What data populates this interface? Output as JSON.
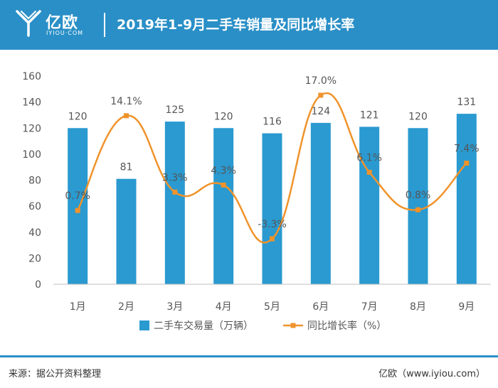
{
  "header": {
    "logo_text": "亿欧",
    "logo_sub": "IYIOU·COM",
    "title": "2019年1-9月二手车销量及同比增长率"
  },
  "chart_data": {
    "type": "bar",
    "title": "2019年1-9月二手车销量及同比增长率",
    "categories": [
      "1月",
      "2月",
      "3月",
      "4月",
      "5月",
      "6月",
      "7月",
      "8月",
      "9月"
    ],
    "series": [
      {
        "name": "二手车交易量（万辆）",
        "type": "bar",
        "values": [
          120,
          81,
          125,
          120,
          116,
          124,
          121,
          120,
          131
        ],
        "labels": [
          "120",
          "81",
          "125",
          "120",
          "116",
          "124",
          "121",
          "120",
          "131"
        ],
        "color": "#2a9ad0"
      },
      {
        "name": "同比增长率（%）",
        "type": "line",
        "values": [
          0.7,
          14.1,
          3.3,
          4.3,
          -3.3,
          17.0,
          6.1,
          0.8,
          7.4
        ],
        "labels": [
          "0.7%",
          "14.1%",
          "3.3%",
          "4.3%",
          "-3.3%",
          "17.0%",
          "6.1%",
          "0.8%",
          "7.4%"
        ],
        "color": "#f0932b"
      }
    ],
    "y_ticks": [
      "0",
      "20",
      "40",
      "60",
      "80",
      "100",
      "120",
      "140",
      "160"
    ],
    "ylim": [
      0,
      160
    ],
    "legend_position": "bottom",
    "grid": false
  },
  "footer": {
    "source": "来源：据公开资料整理",
    "brand": "亿欧（www.iyiou.com）"
  }
}
